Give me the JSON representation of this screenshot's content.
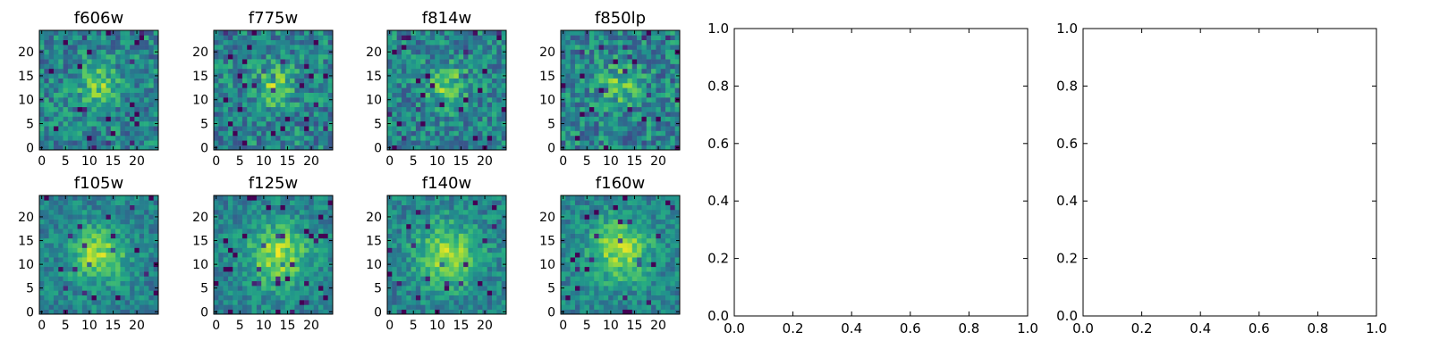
{
  "chart_data": [
    {
      "type": "heatmap",
      "title": "f606w",
      "colormap": "viridis",
      "xlim": [
        0,
        25
      ],
      "ylim": [
        0,
        25
      ],
      "grid_size": 25,
      "seed": 11,
      "blob": {
        "center": [
          12,
          13
        ],
        "sigma": 3.0,
        "amplitude": 0.3
      },
      "noise": 0.42,
      "xticks": [
        "0",
        "5",
        "10",
        "15",
        "20"
      ],
      "yticks": [
        "0",
        "5",
        "10",
        "15",
        "20"
      ]
    },
    {
      "type": "heatmap",
      "title": "f775w",
      "colormap": "viridis",
      "xlim": [
        0,
        25
      ],
      "ylim": [
        0,
        25
      ],
      "grid_size": 25,
      "seed": 23,
      "blob": {
        "center": [
          12,
          13
        ],
        "sigma": 3.0,
        "amplitude": 0.3
      },
      "noise": 0.44,
      "xticks": [
        "0",
        "5",
        "10",
        "15",
        "20"
      ],
      "yticks": [
        "0",
        "5",
        "10",
        "15",
        "20"
      ]
    },
    {
      "type": "heatmap",
      "title": "f814w",
      "colormap": "viridis",
      "xlim": [
        0,
        25
      ],
      "ylim": [
        0,
        25
      ],
      "grid_size": 25,
      "seed": 37,
      "blob": {
        "center": [
          12,
          13
        ],
        "sigma": 3.0,
        "amplitude": 0.3
      },
      "noise": 0.42,
      "xticks": [
        "0",
        "5",
        "10",
        "15",
        "20"
      ],
      "yticks": [
        "0",
        "5",
        "10",
        "15",
        "20"
      ]
    },
    {
      "type": "heatmap",
      "title": "f850lp",
      "colormap": "viridis",
      "xlim": [
        0,
        25
      ],
      "ylim": [
        0,
        25
      ],
      "grid_size": 25,
      "seed": 41,
      "blob": {
        "center": [
          12,
          13
        ],
        "sigma": 3.0,
        "amplitude": 0.25
      },
      "noise": 0.45,
      "xticks": [
        "0",
        "5",
        "10",
        "15",
        "20"
      ],
      "yticks": [
        "0",
        "5",
        "10",
        "15",
        "20"
      ]
    },
    {
      "type": "heatmap",
      "title": "f105w",
      "colormap": "viridis",
      "xlim": [
        0,
        25
      ],
      "ylim": [
        0,
        25
      ],
      "grid_size": 25,
      "seed": 53,
      "blob": {
        "center": [
          12,
          12
        ],
        "sigma": 4.0,
        "amplitude": 0.4
      },
      "noise": 0.3,
      "xticks": [
        "0",
        "5",
        "10",
        "15",
        "20"
      ],
      "yticks": [
        "0",
        "5",
        "10",
        "15",
        "20"
      ]
    },
    {
      "type": "heatmap",
      "title": "f125w",
      "colormap": "viridis",
      "xlim": [
        0,
        25
      ],
      "ylim": [
        0,
        25
      ],
      "grid_size": 25,
      "seed": 67,
      "blob": {
        "center": [
          13,
          12
        ],
        "sigma": 4.5,
        "amplitude": 0.4
      },
      "noise": 0.3,
      "xticks": [
        "0",
        "5",
        "10",
        "15",
        "20"
      ],
      "yticks": [
        "0",
        "5",
        "10",
        "15",
        "20"
      ]
    },
    {
      "type": "heatmap",
      "title": "f140w",
      "colormap": "viridis",
      "xlim": [
        0,
        25
      ],
      "ylim": [
        0,
        25
      ],
      "grid_size": 25,
      "seed": 79,
      "blob": {
        "center": [
          12,
          12
        ],
        "sigma": 4.5,
        "amplitude": 0.4
      },
      "noise": 0.32,
      "xticks": [
        "0",
        "5",
        "10",
        "15",
        "20"
      ],
      "yticks": [
        "0",
        "5",
        "10",
        "15",
        "20"
      ]
    },
    {
      "type": "heatmap",
      "title": "f160w",
      "colormap": "viridis",
      "xlim": [
        0,
        25
      ],
      "ylim": [
        0,
        25
      ],
      "grid_size": 25,
      "seed": 97,
      "blob": {
        "center": [
          12,
          13
        ],
        "sigma": 4.5,
        "amplitude": 0.4
      },
      "noise": 0.3,
      "xticks": [
        "0",
        "5",
        "10",
        "15",
        "20"
      ],
      "yticks": [
        "0",
        "5",
        "10",
        "15",
        "20"
      ]
    },
    {
      "type": "scatter",
      "title": "",
      "series": [],
      "xlim": [
        0,
        1
      ],
      "ylim": [
        0,
        1
      ],
      "xticks": [
        "0.0",
        "0.2",
        "0.4",
        "0.6",
        "0.8",
        "1.0"
      ],
      "yticks": [
        "0.0",
        "0.2",
        "0.4",
        "0.6",
        "0.8",
        "1.0"
      ]
    },
    {
      "type": "scatter",
      "title": "",
      "series": [],
      "xlim": [
        0,
        1
      ],
      "ylim": [
        0,
        1
      ],
      "xticks": [
        "0.0",
        "0.2",
        "0.4",
        "0.6",
        "0.8",
        "1.0"
      ],
      "yticks": [
        "0.0",
        "0.2",
        "0.4",
        "0.6",
        "0.8",
        "1.0"
      ]
    }
  ]
}
